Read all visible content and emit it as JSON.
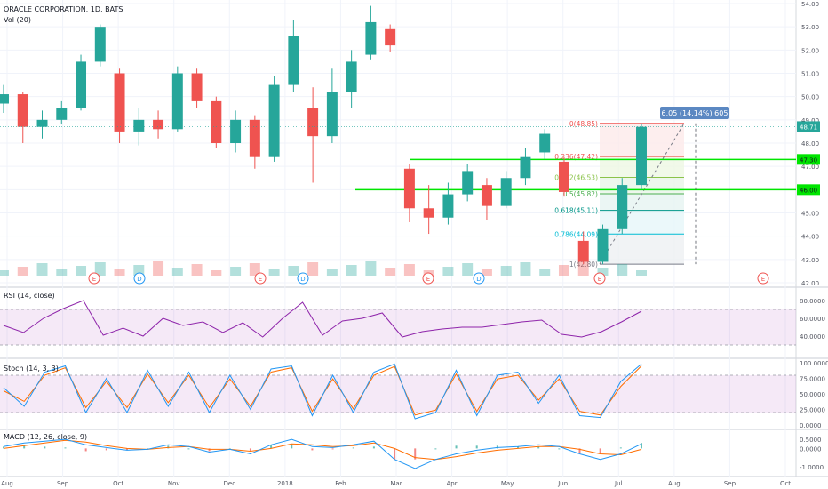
{
  "header": {
    "title": "ORACLE CORPORATION, 1D, BATS",
    "vol_label": "Vol (20)"
  },
  "panes": {
    "rsi": {
      "label": "RSI (14, close)",
      "ticks": [
        "80.0000",
        "60.0000",
        "40.0000"
      ]
    },
    "stoch": {
      "label": "Stoch (14, 3, 3)",
      "ticks": [
        "100.0000",
        "75.0000",
        "50.0000",
        "25.0000",
        "0.0000"
      ]
    },
    "macd": {
      "label": "MACD (12, 26, close, 9)",
      "ticks": [
        "0.5000",
        "0.0000",
        "-1.0000"
      ]
    }
  },
  "colors": {
    "up": "#26a69a",
    "down": "#ef5350",
    "hline": "#00e600",
    "rsi_line": "#8e24aa",
    "stoch_k": "#2196f3",
    "stoch_d": "#ff6d00",
    "macd_line": "#2196f3",
    "signal_line": "#ff6d00",
    "price_tag": "#26a69a"
  },
  "chart_data": {
    "type": "candlestick",
    "price_axis": {
      "ticks": [
        "54.00",
        "53.00",
        "52.00",
        "51.00",
        "50.00",
        "49.00",
        "48.00",
        "47.00",
        "46.00",
        "45.00",
        "44.00",
        "43.00",
        "42.00"
      ],
      "range": [
        42,
        54
      ]
    },
    "time_axis": [
      "Aug",
      "Sep",
      "Oct",
      "Nov",
      "Dec",
      "2018",
      "Feb",
      "Mar",
      "Apr",
      "May",
      "Jun",
      "Jul",
      "Aug",
      "Sep",
      "Oct"
    ],
    "last_price": "48.71",
    "horizontal_lines": [
      {
        "label": "47.30",
        "value": 47.3
      },
      {
        "label": "46.00",
        "value": 46.0
      }
    ],
    "fib_levels": [
      {
        "label": "0(48.85)",
        "value": 48.85
      },
      {
        "label": "0.236(47.42)",
        "value": 47.42
      },
      {
        "label": "0.382(46.53)",
        "value": 46.53
      },
      {
        "label": "0.5(45.82)",
        "value": 45.82
      },
      {
        "label": "0.618(45.11)",
        "value": 45.11
      },
      {
        "label": "0.786(44.09)",
        "value": 44.09
      },
      {
        "label": "1(42.80)",
        "value": 42.8
      }
    ],
    "measure_label": "6.05 (14.14%) 605",
    "event_markers": [
      "E",
      "D",
      "E",
      "D",
      "E",
      "D",
      "E",
      "E"
    ],
    "price_series": [
      {
        "d": "Aug",
        "o": 49.7,
        "c": 50.1,
        "h": 50.5,
        "l": 49.3
      },
      {
        "d": "Aug",
        "o": 50.1,
        "c": 48.7,
        "h": 50.2,
        "l": 48.0
      },
      {
        "d": "Aug",
        "o": 48.7,
        "c": 49.0,
        "h": 49.4,
        "l": 48.2
      },
      {
        "d": "Aug",
        "o": 49.0,
        "c": 49.5,
        "h": 49.8,
        "l": 48.8
      },
      {
        "d": "Sep",
        "o": 49.5,
        "c": 51.5,
        "h": 51.8,
        "l": 49.4
      },
      {
        "d": "Sep",
        "o": 51.5,
        "c": 53.0,
        "h": 53.1,
        "l": 51.3
      },
      {
        "d": "Sep",
        "o": 51.0,
        "c": 48.5,
        "h": 51.2,
        "l": 48.0
      },
      {
        "d": "Oct",
        "o": 48.5,
        "c": 49.0,
        "h": 49.5,
        "l": 47.9
      },
      {
        "d": "Oct",
        "o": 49.0,
        "c": 48.6,
        "h": 49.4,
        "l": 48.2
      },
      {
        "d": "Nov",
        "o": 48.6,
        "c": 51.0,
        "h": 51.3,
        "l": 48.5
      },
      {
        "d": "Nov",
        "o": 51.0,
        "c": 49.8,
        "h": 51.2,
        "l": 49.5
      },
      {
        "d": "Dec",
        "o": 49.8,
        "c": 48.0,
        "h": 50.0,
        "l": 47.8
      },
      {
        "d": "Dec",
        "o": 48.0,
        "c": 49.0,
        "h": 49.4,
        "l": 47.6
      },
      {
        "d": "2018",
        "o": 49.0,
        "c": 47.4,
        "h": 49.2,
        "l": 46.9
      },
      {
        "d": "2018",
        "o": 47.4,
        "c": 50.5,
        "h": 50.9,
        "l": 47.2
      },
      {
        "d": "Feb",
        "o": 50.5,
        "c": 52.6,
        "h": 53.3,
        "l": 50.2
      },
      {
        "d": "Feb",
        "o": 49.5,
        "c": 48.3,
        "h": 50.4,
        "l": 46.3
      },
      {
        "d": "Feb",
        "o": 48.3,
        "c": 50.2,
        "h": 51.2,
        "l": 48.0
      },
      {
        "d": "Mar",
        "o": 50.2,
        "c": 51.5,
        "h": 52.0,
        "l": 49.5
      },
      {
        "d": "Mar",
        "o": 51.8,
        "c": 53.2,
        "h": 53.9,
        "l": 51.6
      },
      {
        "d": "Mar",
        "o": 52.9,
        "c": 52.2,
        "h": 53.1,
        "l": 51.9
      },
      {
        "d": "Apr",
        "o": 46.9,
        "c": 45.2,
        "h": 47.1,
        "l": 44.6
      },
      {
        "d": "Apr",
        "o": 45.2,
        "c": 44.8,
        "h": 46.2,
        "l": 44.1
      },
      {
        "d": "Apr",
        "o": 44.8,
        "c": 45.8,
        "h": 46.3,
        "l": 44.5
      },
      {
        "d": "May",
        "o": 45.8,
        "c": 46.8,
        "h": 47.1,
        "l": 45.5
      },
      {
        "d": "May",
        "o": 46.2,
        "c": 45.3,
        "h": 46.5,
        "l": 44.7
      },
      {
        "d": "May",
        "o": 45.3,
        "c": 46.5,
        "h": 46.8,
        "l": 45.2
      },
      {
        "d": "Jun",
        "o": 46.5,
        "c": 47.4,
        "h": 47.8,
        "l": 46.2
      },
      {
        "d": "Jun",
        "o": 47.6,
        "c": 48.4,
        "h": 48.6,
        "l": 47.3
      },
      {
        "d": "Jun",
        "o": 47.2,
        "c": 45.9,
        "h": 47.4,
        "l": 45.7
      },
      {
        "d": "Jun",
        "o": 43.8,
        "c": 42.9,
        "h": 44.2,
        "l": 42.8
      },
      {
        "d": "Jul",
        "o": 42.9,
        "c": 44.3,
        "h": 44.5,
        "l": 42.8
      },
      {
        "d": "Jul",
        "o": 44.3,
        "c": 46.2,
        "h": 46.5,
        "l": 44.1
      },
      {
        "d": "Jul",
        "o": 46.2,
        "c": 48.7,
        "h": 48.85,
        "l": 46.0
      }
    ],
    "rsi": [
      52,
      44,
      60,
      71,
      80,
      41,
      49,
      40,
      60,
      52,
      56,
      44,
      55,
      39,
      60,
      78,
      41,
      57,
      60,
      66,
      39,
      45,
      48,
      50,
      50,
      53,
      56,
      58,
      42,
      39,
      45,
      56,
      68
    ],
    "stoch_k": [
      60,
      30,
      85,
      95,
      20,
      75,
      20,
      88,
      30,
      85,
      20,
      80,
      25,
      90,
      95,
      15,
      80,
      20,
      85,
      98,
      10,
      20,
      88,
      15,
      80,
      85,
      35,
      80,
      15,
      12,
      70,
      98
    ],
    "stoch_d": [
      55,
      38,
      80,
      92,
      28,
      70,
      28,
      82,
      36,
      80,
      28,
      74,
      30,
      85,
      92,
      22,
      74,
      26,
      80,
      94,
      16,
      24,
      82,
      22,
      74,
      80,
      40,
      74,
      22,
      16,
      62,
      95
    ],
    "macd": [
      0.1,
      0.3,
      0.4,
      0.5,
      0.2,
      0.05,
      -0.1,
      -0.05,
      0.2,
      0.1,
      -0.2,
      -0.05,
      -0.3,
      0.2,
      0.5,
      0.1,
      0.05,
      0.2,
      0.4,
      -0.6,
      -1.1,
      -0.6,
      -0.3,
      -0.1,
      0.05,
      0.1,
      0.2,
      0.1,
      -0.3,
      -0.6,
      -0.3,
      0.25
    ],
    "signal": [
      0.0,
      0.15,
      0.3,
      0.45,
      0.35,
      0.15,
      0.0,
      -0.05,
      0.05,
      0.1,
      -0.05,
      -0.05,
      -0.15,
      0.0,
      0.25,
      0.2,
      0.1,
      0.15,
      0.3,
      0.0,
      -0.5,
      -0.6,
      -0.45,
      -0.25,
      -0.1,
      0.0,
      0.1,
      0.1,
      -0.05,
      -0.3,
      -0.35,
      -0.05
    ]
  }
}
